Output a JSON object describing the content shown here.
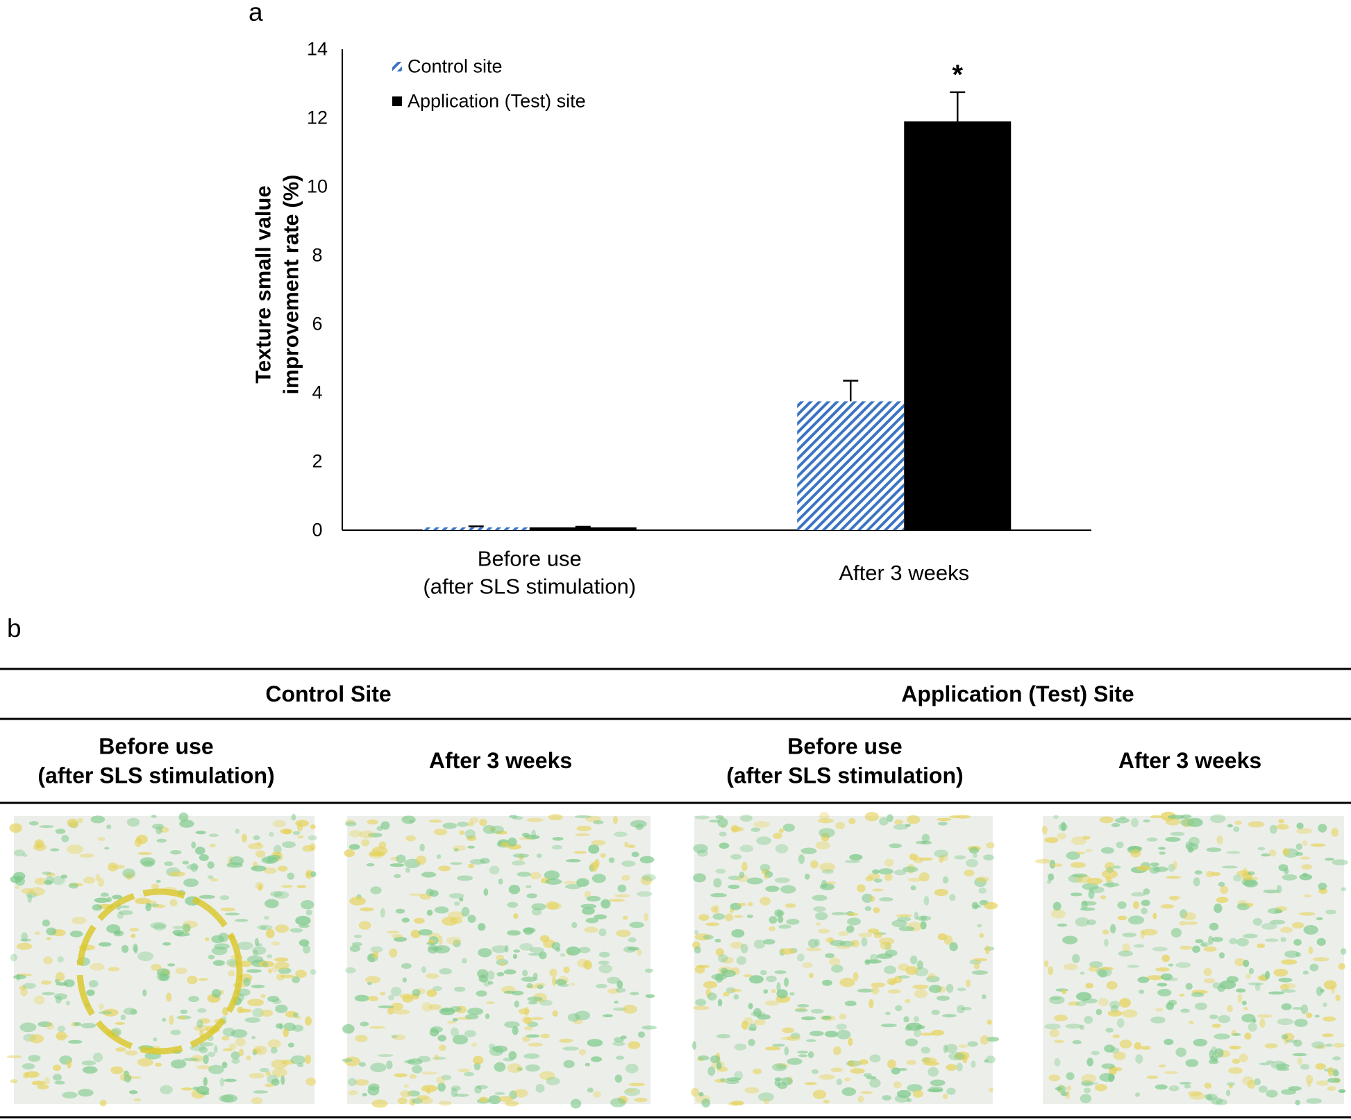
{
  "panel_labels": [
    "a",
    "b"
  ],
  "chart_data": {
    "type": "bar",
    "ylabel": "Texture small value\nimprovement rate (%)",
    "categories": [
      "Before use\n(after SLS stimulation)",
      "After 3 weeks"
    ],
    "series": [
      {
        "name": "Control site",
        "color": "#3b74c2",
        "pattern": "hatch",
        "values": [
          0.08,
          3.75
        ],
        "errors": [
          0.03,
          0.6
        ],
        "markers": [
          null,
          null
        ]
      },
      {
        "name": "Application (Test) site",
        "color": "#000000",
        "pattern": "solid",
        "values": [
          0.08,
          11.9
        ],
        "errors": [
          0.02,
          0.85
        ],
        "markers": [
          null,
          "*"
        ]
      }
    ],
    "ylim": [
      0,
      14
    ],
    "yticks": [
      0,
      2,
      4,
      6,
      8,
      10,
      12,
      14
    ],
    "grid": false,
    "legend": "upper left"
  },
  "table": {
    "header": [
      "Control Site",
      "Application (Test) Site"
    ],
    "subheader": [
      "Before use\n(after SLS stimulation)",
      "After 3 weeks",
      "Before use\n(after SLS stimulation)",
      "After 3 weeks"
    ]
  }
}
